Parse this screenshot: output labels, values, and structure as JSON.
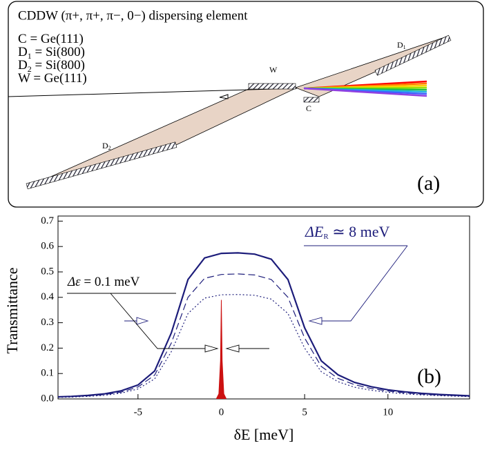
{
  "diagram": {
    "title": "CDDW (π+, π+, π−, 0−) dispersing element",
    "legend": [
      {
        "name": "C",
        "rest": " = Ge(111)"
      },
      {
        "name": "D",
        "sub": "1",
        "rest": " = Si(800)"
      },
      {
        "name": "D",
        "sub": "2",
        "rest": " = Si(800)"
      },
      {
        "name": "W",
        "rest": " = Ge(111)"
      }
    ],
    "labels": {
      "W": "W",
      "C": "C",
      "D1": {
        "name": "D",
        "sub": "1"
      },
      "D2": {
        "name": "D",
        "sub": "2"
      }
    },
    "panel": "(a)"
  },
  "chart_data": {
    "type": "line",
    "xlabel": "δE [meV]",
    "ylabel": "Transmittance",
    "panel": "(b)",
    "xlim": [
      -9.8,
      14.9
    ],
    "ylim": [
      0,
      0.72
    ],
    "xticks": [
      -5,
      0,
      5,
      10
    ],
    "yticks": [
      {
        "value": 0,
        "label": "0.0"
      },
      0.1,
      0.2,
      0.3,
      0.4,
      0.5,
      0.6,
      0.7
    ],
    "annotations": [
      {
        "text": "ΔE",
        "sub": "R",
        "rest": " ≃ 8 meV"
      },
      {
        "text": "Δε",
        "rest": " = 0.1 meV"
      }
    ],
    "series": [
      {
        "color": "#1c1c7a",
        "style": "solid",
        "x": [
          -10,
          -9,
          -8,
          -7,
          -6,
          -5,
          -4,
          -3,
          -2,
          -1,
          0,
          1,
          2,
          3,
          4,
          5,
          6,
          7,
          8,
          9,
          10,
          11,
          12,
          13,
          14,
          15
        ],
        "values": [
          0.008,
          0.01,
          0.014,
          0.02,
          0.032,
          0.055,
          0.11,
          0.26,
          0.47,
          0.555,
          0.573,
          0.575,
          0.57,
          0.55,
          0.47,
          0.28,
          0.15,
          0.095,
          0.065,
          0.048,
          0.036,
          0.028,
          0.022,
          0.018,
          0.015,
          0.012
        ]
      },
      {
        "color": "#1c1c7a",
        "style": "dashed",
        "x": [
          -10,
          -9,
          -8,
          -7,
          -6,
          -5,
          -4,
          -3,
          -2,
          -1,
          0,
          1,
          2,
          3,
          4,
          5,
          6,
          7,
          8,
          9,
          10,
          11,
          12,
          13,
          14,
          15
        ],
        "values": [
          0.007,
          0.009,
          0.012,
          0.017,
          0.027,
          0.047,
          0.094,
          0.22,
          0.4,
          0.475,
          0.49,
          0.492,
          0.488,
          0.47,
          0.4,
          0.24,
          0.128,
          0.081,
          0.056,
          0.041,
          0.031,
          0.024,
          0.019,
          0.015,
          0.013,
          0.01
        ]
      },
      {
        "color": "#1c1c7a",
        "style": "dotted",
        "x": [
          -10,
          -9,
          -8,
          -7,
          -6,
          -5,
          -4,
          -3,
          -2,
          -1,
          0,
          1,
          2,
          3,
          4,
          5,
          6,
          7,
          8,
          9,
          10,
          11,
          12,
          13,
          14,
          15
        ],
        "values": [
          0.006,
          0.007,
          0.01,
          0.014,
          0.023,
          0.039,
          0.079,
          0.186,
          0.336,
          0.397,
          0.41,
          0.411,
          0.408,
          0.393,
          0.336,
          0.2,
          0.107,
          0.068,
          0.046,
          0.034,
          0.026,
          0.02,
          0.016,
          0.013,
          0.011,
          0.009
        ]
      },
      {
        "color": "#cc1111",
        "style": "filled",
        "x": [
          -0.3,
          -0.15,
          -0.05,
          0,
          0.05,
          0.15,
          0.3
        ],
        "values": [
          0,
          0.02,
          0.15,
          0.39,
          0.15,
          0.02,
          0
        ]
      }
    ]
  }
}
